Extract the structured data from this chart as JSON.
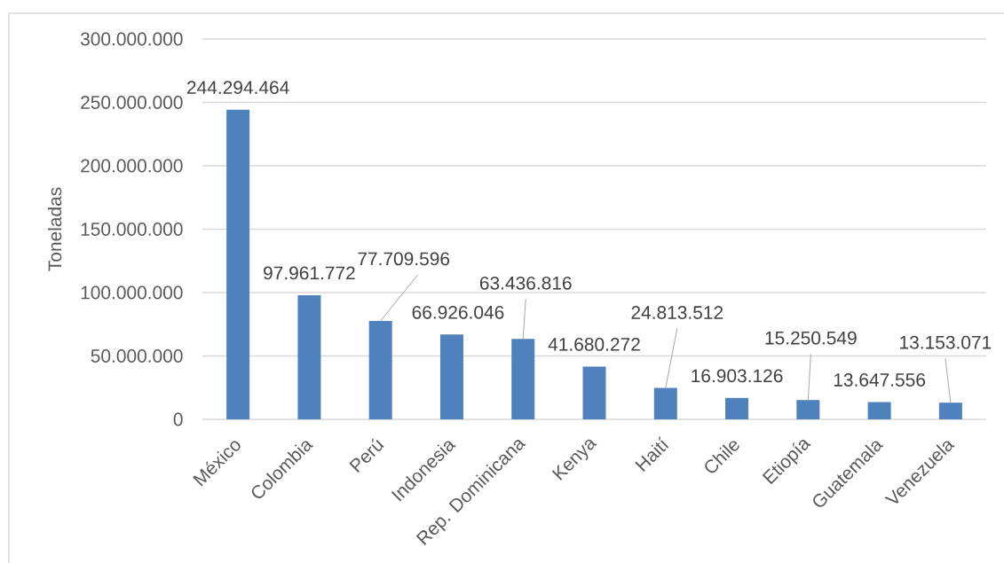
{
  "chart_data": {
    "type": "bar",
    "ylabel": "Toneladas",
    "categories": [
      "México",
      "Colombia",
      "Perú",
      "Indonesia",
      "Rep. Dominicana",
      "Kenya",
      "Haití",
      "Chile",
      "Etiopía",
      "Guatemala",
      "Venezuela"
    ],
    "values": [
      244294464,
      97961772,
      77709596,
      66926046,
      63436816,
      41680272,
      24813512,
      16903126,
      15250549,
      13647556,
      13153071
    ],
    "value_labels": [
      "244.294.464",
      "97.961.772",
      "77.709.596",
      "66.926.046",
      "63.436.816",
      "41.680.272",
      "24.813.512",
      "16.903.126",
      "15.250.549",
      "13.647.556",
      "13.153.071"
    ],
    "color": "#4f81bd",
    "ylim": [
      0,
      300000000
    ],
    "yticks": [
      0,
      {
        "value": 50000000,
        "label": "50.000.000"
      },
      {
        "value": 100000000,
        "label": "100.000.000"
      },
      {
        "value": 150000000,
        "label": "150.000.000"
      },
      {
        "value": 200000000,
        "label": "200.000.000"
      },
      {
        "value": 250000000,
        "label": "250.000.000"
      },
      {
        "value": 300000000,
        "label": "300.000.000"
      }
    ],
    "grid": "y"
  }
}
